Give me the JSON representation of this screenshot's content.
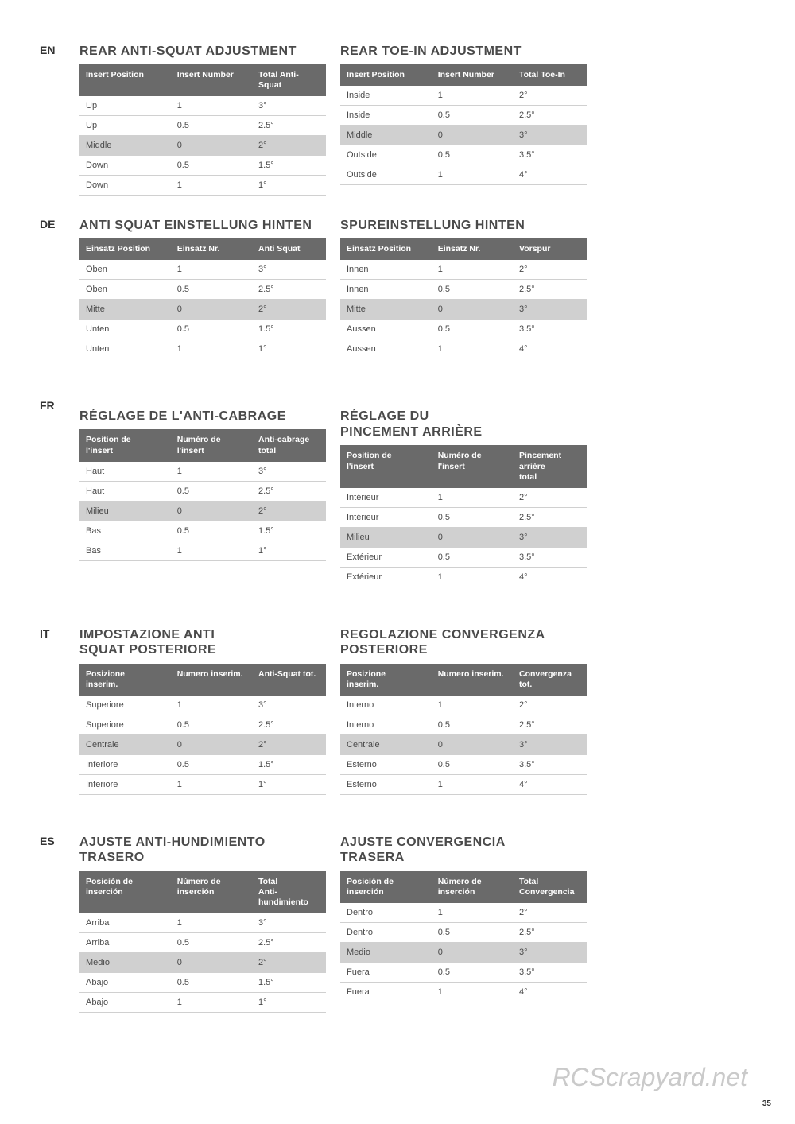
{
  "colors": {
    "header_bg": "#6a6a6a",
    "header_text": "#ffffff",
    "row_border": "#d0d0d0",
    "shade_bg": "#d0d0d0",
    "text": "#4a4a4a",
    "background": "#ffffff"
  },
  "watermark": "RCScrapyard.net",
  "page_number": "35",
  "sections": [
    {
      "lang": "EN",
      "left": {
        "title": "REAR ANTI-SQUAT ADJUSTMENT",
        "columns": [
          "Insert Position",
          "Insert Number",
          "Total Anti-Squat"
        ],
        "rows": [
          [
            "Up",
            "1",
            "3°"
          ],
          [
            "Up",
            "0.5",
            "2.5°"
          ],
          [
            "Middle",
            "0",
            "2°"
          ],
          [
            "Down",
            "0.5",
            "1.5°"
          ],
          [
            "Down",
            "1",
            "1°"
          ]
        ]
      },
      "right": {
        "title": "REAR TOE-IN ADJUSTMENT",
        "columns": [
          "Insert Position",
          "Insert Number",
          "Total Toe-In"
        ],
        "rows": [
          [
            "Inside",
            "1",
            "2°"
          ],
          [
            "Inside",
            "0.5",
            "2.5°"
          ],
          [
            "Middle",
            "0",
            "3°"
          ],
          [
            "Outside",
            "0.5",
            "3.5°"
          ],
          [
            "Outside",
            "1",
            "4°"
          ]
        ]
      }
    },
    {
      "lang": "DE",
      "left": {
        "title": "ANTI SQUAT EINSTELLUNG HINTEN",
        "columns": [
          "Einsatz Position",
          "Einsatz Nr.",
          "Anti Squat"
        ],
        "rows": [
          [
            "Oben",
            "1",
            "3°"
          ],
          [
            "Oben",
            "0.5",
            "2.5°"
          ],
          [
            "Mitte",
            "0",
            "2°"
          ],
          [
            "Unten",
            "0.5",
            "1.5°"
          ],
          [
            "Unten",
            "1",
            "1°"
          ]
        ]
      },
      "right": {
        "title": "SPUREINSTELLUNG HINTEN",
        "columns": [
          "Einsatz Position",
          "Einsatz Nr.",
          "Vorspur"
        ],
        "rows": [
          [
            "Innen",
            "1",
            "2°"
          ],
          [
            "Innen",
            "0.5",
            "2.5°"
          ],
          [
            "Mitte",
            "0",
            "3°"
          ],
          [
            "Aussen",
            "0.5",
            "3.5°"
          ],
          [
            "Aussen",
            "1",
            "4°"
          ]
        ]
      }
    },
    {
      "lang": "FR",
      "left": {
        "title": "RÉGLAGE DE L'ANTI-CABRAGE",
        "columns": [
          "Position de l'insert",
          "Numéro de l'insert",
          "Anti-cabrage total"
        ],
        "rows": [
          [
            "Haut",
            "1",
            "3°"
          ],
          [
            "Haut",
            "0.5",
            "2.5°"
          ],
          [
            "Milieu",
            "0",
            "2°"
          ],
          [
            "Bas",
            "0.5",
            "1.5°"
          ],
          [
            "Bas",
            "1",
            "1°"
          ]
        ]
      },
      "right": {
        "title": "RÉGLAGE DU PINCEMENT ARRIÈRE",
        "columns": [
          "Position de l'insert",
          "Numéro de l'insert",
          "Pincement arrière total"
        ],
        "rows": [
          [
            "Intérieur",
            "1",
            "2°"
          ],
          [
            "Intérieur",
            "0.5",
            "2.5°"
          ],
          [
            "Milieu",
            "0",
            "3°"
          ],
          [
            "Extérieur",
            "0.5",
            "3.5°"
          ],
          [
            "Extérieur",
            "1",
            "4°"
          ]
        ]
      }
    },
    {
      "lang": "IT",
      "left": {
        "title": "IMPOSTAZIONE ANTI SQUAT POSTERIORE",
        "columns": [
          "Posizione inserim.",
          "Numero inserim.",
          "Anti-Squat tot."
        ],
        "rows": [
          [
            "Superiore",
            "1",
            "3°"
          ],
          [
            "Superiore",
            "0.5",
            "2.5°"
          ],
          [
            "Centrale",
            "0",
            "2°"
          ],
          [
            "Inferiore",
            "0.5",
            "1.5°"
          ],
          [
            "Inferiore",
            "1",
            "1°"
          ]
        ]
      },
      "right": {
        "title": "REGOLAZIONE CONVERGENZA POSTERIORE",
        "columns": [
          "Posizione inserim.",
          "Numero inserim.",
          "Convergenza tot."
        ],
        "rows": [
          [
            "Interno",
            "1",
            "2°"
          ],
          [
            "Interno",
            "0.5",
            "2.5°"
          ],
          [
            "Centrale",
            "0",
            "3°"
          ],
          [
            "Esterno",
            "0.5",
            "3.5°"
          ],
          [
            "Esterno",
            "1",
            "4°"
          ]
        ]
      }
    },
    {
      "lang": "ES",
      "left": {
        "title": "AJUSTE ANTI-HUNDIMIENTO TRASERO",
        "columns": [
          "Posición de inserción",
          "Número de inserción",
          "Total Anti-hundimiento"
        ],
        "rows": [
          [
            "Arriba",
            "1",
            "3°"
          ],
          [
            "Arriba",
            "0.5",
            "2.5°"
          ],
          [
            "Medio",
            "0",
            "2°"
          ],
          [
            "Abajo",
            "0.5",
            "1.5°"
          ],
          [
            "Abajo",
            "1",
            "1°"
          ]
        ]
      },
      "right": {
        "title": "AJUSTE CONVERGENCIA TRASERA",
        "columns": [
          "Posición de inserción",
          "Número de inserción",
          "Total Convergencia"
        ],
        "rows": [
          [
            "Dentro",
            "1",
            "2°"
          ],
          [
            "Dentro",
            "0.5",
            "2.5°"
          ],
          [
            "Medio",
            "0",
            "3°"
          ],
          [
            "Fuera",
            "0.5",
            "3.5°"
          ],
          [
            "Fuera",
            "1",
            "4°"
          ]
        ]
      }
    }
  ]
}
